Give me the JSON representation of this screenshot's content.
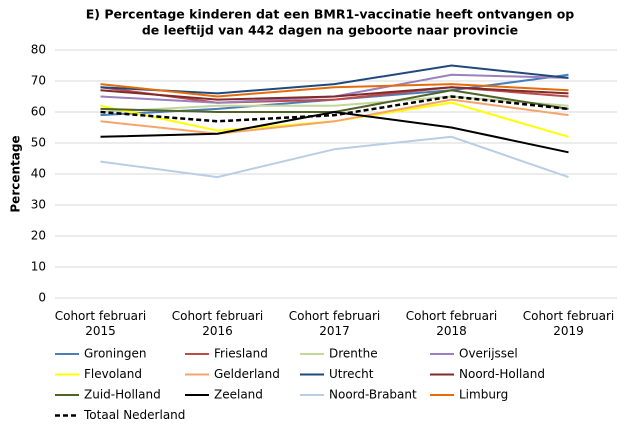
{
  "chart_data": {
    "type": "line",
    "title": [
      "E) Percentage kinderen dat een BMR1-vaccinatie heeft ontvangen op",
      "de leeftijd van 442 dagen na geboorte naar provincie"
    ],
    "y_label": "Percentage",
    "categories": [
      "Cohort februari 2015",
      "Cohort februari 2016",
      "Cohort februari 2017",
      "Cohort februari 2018",
      "Cohort februari 2019"
    ],
    "ylim": [
      0,
      80
    ],
    "yticks": [
      0,
      10,
      20,
      30,
      40,
      50,
      60,
      70,
      80
    ],
    "grid": true,
    "legend": "bottom",
    "series": [
      {
        "name": "Groningen",
        "color": "#4a7ebb",
        "values": [
          59,
          61,
          64,
          67,
          72
        ]
      },
      {
        "name": "Friesland",
        "color": "#be4b48",
        "values": [
          68,
          63,
          64,
          68,
          65
        ]
      },
      {
        "name": "Drenthe",
        "color": "#c3d69b",
        "values": [
          60,
          62,
          62,
          65,
          62
        ]
      },
      {
        "name": "Overijssel",
        "color": "#9b7fbf",
        "values": [
          65,
          63,
          65,
          72,
          71
        ]
      },
      {
        "name": "Flevoland",
        "color": "#ffff00",
        "values": [
          62,
          54,
          57,
          63,
          52
        ]
      },
      {
        "name": "Gelderland",
        "color": "#f5a56b",
        "values": [
          57,
          53,
          57,
          64,
          59
        ]
      },
      {
        "name": "Utrecht",
        "color": "#1f497d",
        "values": [
          68,
          66,
          69,
          75,
          71
        ]
      },
      {
        "name": "Noord-Holland",
        "color": "#7f2b2a",
        "values": [
          67,
          64,
          65,
          68,
          66
        ]
      },
      {
        "name": "Zuid-Holland",
        "color": "#4f6228",
        "values": [
          61,
          60,
          60,
          67,
          61
        ]
      },
      {
        "name": "Zeeland",
        "color": "#000000",
        "values": [
          52,
          53,
          60,
          55,
          47
        ]
      },
      {
        "name": "Noord-Brabant",
        "color": "#b9cde5",
        "values": [
          44,
          39,
          48,
          52,
          39
        ]
      },
      {
        "name": "Limburg",
        "color": "#e46c0a",
        "values": [
          69,
          65,
          68,
          69,
          67
        ]
      },
      {
        "name": "Totaal Nederland",
        "color": "#000000",
        "dashed": true,
        "values": [
          60,
          57,
          59,
          65,
          61
        ]
      }
    ]
  }
}
